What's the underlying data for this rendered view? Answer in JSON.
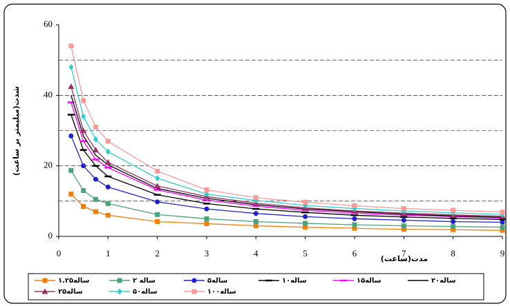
{
  "chart_data": {
    "type": "line",
    "y_label": "شدت(میلیمتر بر ساعت)",
    "x_label": "مدت(ساعت)",
    "x": [
      0.25,
      0.5,
      0.75,
      1,
      2,
      3,
      4,
      5,
      6,
      7,
      8,
      9
    ],
    "xlim": [
      0,
      9
    ],
    "xticks": [
      0,
      1,
      2,
      3,
      4,
      5,
      6,
      7,
      8,
      9
    ],
    "ylim": [
      0,
      60
    ],
    "yticks": [
      0,
      20,
      40,
      60
    ],
    "ygrid": [
      10,
      20,
      30,
      40,
      50
    ],
    "series": [
      {
        "name": "۱.۲۵ساله",
        "color": "#f07f09",
        "marker": "square",
        "values": [
          12,
          8.5,
          7,
          6,
          4.2,
          3.6,
          3,
          2.6,
          2.3,
          2,
          1.9,
          1.7
        ]
      },
      {
        "name": "۲ ساله",
        "color": "#4aa37a",
        "marker": "square",
        "values": [
          18.7,
          13,
          10.5,
          9.3,
          6.2,
          5,
          4.2,
          3.7,
          3.3,
          3,
          2.8,
          2.6
        ]
      },
      {
        "name": "۵ساله",
        "color": "#1f1fd0",
        "marker": "circle",
        "values": [
          28.5,
          20,
          16.2,
          14,
          9.8,
          7.8,
          6.5,
          5.6,
          5,
          4.6,
          4.2,
          4
        ]
      },
      {
        "name": "۱۰ساله",
        "color": "#000000",
        "marker": "dash",
        "values": [
          34.5,
          24.5,
          20,
          17,
          11.8,
          9.3,
          7.8,
          6.8,
          6,
          5.5,
          5.1,
          4.8
        ]
      },
      {
        "name": "۱۵ساله",
        "color": "#ff00ff",
        "marker": "dash",
        "values": [
          38,
          27,
          21.8,
          19.5,
          13.2,
          10.3,
          8.6,
          7.4,
          6.6,
          6,
          5.6,
          5.2
        ]
      },
      {
        "name": "۲۰ساله",
        "color": "#000000",
        "marker": "none",
        "values": [
          40,
          28.5,
          23,
          20.3,
          13.6,
          10.8,
          9,
          7.8,
          7,
          6.3,
          5.8,
          5.4
        ]
      },
      {
        "name": "۲۵ساله",
        "color": "#993366",
        "marker": "triangle",
        "values": [
          42.5,
          30,
          24.5,
          21,
          14.3,
          11.3,
          9.4,
          8.1,
          7.2,
          6.6,
          6.1,
          5.7
        ]
      },
      {
        "name": "۵۰ساله",
        "color": "#33cccc",
        "marker": "diamond",
        "values": [
          48,
          34,
          27.5,
          24,
          16.5,
          12,
          10.2,
          8.8,
          7.9,
          7.2,
          6.7,
          6.2
        ]
      },
      {
        "name": "۱۰۰ساله",
        "color": "#ff9999",
        "marker": "square",
        "values": [
          54,
          38.5,
          31,
          27,
          18.5,
          13.2,
          11,
          9.7,
          8.7,
          7.9,
          7.4,
          6.9
        ]
      }
    ]
  }
}
